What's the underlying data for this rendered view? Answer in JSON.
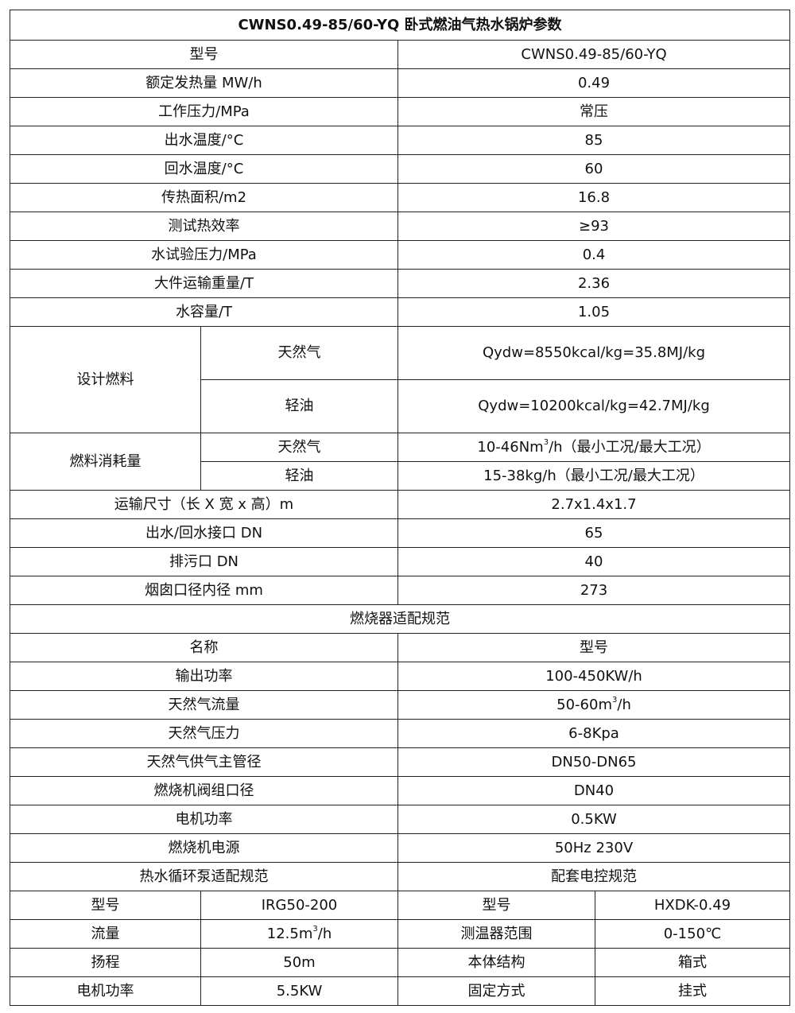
{
  "title": "CWNS0.49-85/60-YQ 卧式燃油气热水锅炉参数",
  "params": [
    {
      "label": "型号",
      "value": "CWNS0.49-85/60-YQ"
    },
    {
      "label": "额定发热量 MW/h",
      "value": "0.49"
    },
    {
      "label": "工作压力/MPa",
      "value": "常压"
    },
    {
      "label": "出水温度/°C",
      "value": "85"
    },
    {
      "label": "回水温度/°C",
      "value": "60"
    },
    {
      "label": "传热面积/m2",
      "value": "16.8"
    },
    {
      "label": "测试热效率",
      "value": "≥93"
    },
    {
      "label": "水试验压力/MPa",
      "value": "0.4"
    },
    {
      "label": "大件运输重量/T",
      "value": "2.36"
    },
    {
      "label": "水容量/T",
      "value": "1.05"
    }
  ],
  "design_fuel": {
    "label": "设计燃料",
    "rows": [
      {
        "fuel": "天然气",
        "value": "Qydw=8550kcal/kg=35.8MJ/kg"
      },
      {
        "fuel": "轻油",
        "value": "Qydw=10200kcal/kg=42.7MJ/kg"
      }
    ]
  },
  "fuel_consumption": {
    "label": "燃料消耗量",
    "rows": [
      {
        "fuel": "天然气",
        "pre": "10-46Nm",
        "sup": "3",
        "post": "/h（最小工况/最大工况）"
      },
      {
        "fuel": "轻油",
        "pre": "15-38kg/h（最小工况/最大工况）",
        "sup": "",
        "post": ""
      }
    ]
  },
  "params2": [
    {
      "label": "运输尺寸（长 X 宽 x 高）m",
      "value": "2.7x1.4x1.7"
    },
    {
      "label": "出水/回水接口 DN",
      "value": "65"
    },
    {
      "label": "排污口 DN",
      "value": "40"
    },
    {
      "label": "烟囱口径内径 mm",
      "value": "273"
    }
  ],
  "burner": {
    "section_title": "燃烧器适配规范",
    "header": {
      "name": "名称",
      "model": "型号"
    },
    "rows": [
      {
        "label": "输出功率",
        "pre": "100-450KW/h",
        "sup": "",
        "post": ""
      },
      {
        "label": "天然气流量",
        "pre": "50-60m",
        "sup": "3",
        "post": "/h"
      },
      {
        "label": "天然气压力",
        "pre": "6-8Kpa",
        "sup": "",
        "post": ""
      },
      {
        "label": "天然气供气主管径",
        "pre": "DN50-DN65",
        "sup": "",
        "post": ""
      },
      {
        "label": "燃烧机阀组口径",
        "pre": "DN40",
        "sup": "",
        "post": ""
      },
      {
        "label": "电机功率",
        "pre": "0.5KW",
        "sup": "",
        "post": ""
      },
      {
        "label": "燃烧机电源",
        "pre": "50Hz 230V",
        "sup": "",
        "post": ""
      }
    ]
  },
  "pump_title": "热水循环泵适配规范",
  "control_title": "配套电控规范",
  "pump_control_rows": [
    {
      "pl": "型号",
      "pre": "IRG50-200",
      "sup": "",
      "post": "",
      "cl": "型号",
      "cv": "HXDK-0.49"
    },
    {
      "pl": "流量",
      "pre": "12.5m",
      "sup": "3",
      "post": "/h",
      "cl": "测温器范围",
      "cv": "0-150℃"
    },
    {
      "pl": "扬程",
      "pre": "50m",
      "sup": "",
      "post": "",
      "cl": "本体结构",
      "cv": "箱式"
    },
    {
      "pl": "电机功率",
      "pre": "5.5KW",
      "sup": "",
      "post": "",
      "cl": "固定方式",
      "cv": "挂式"
    }
  ]
}
